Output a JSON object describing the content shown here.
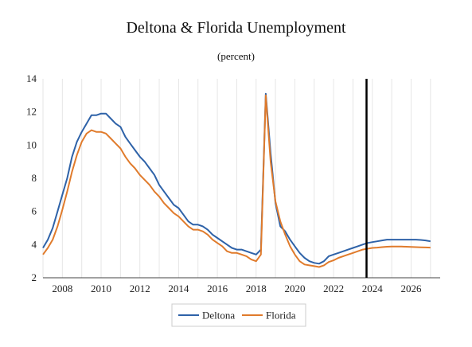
{
  "title": "Deltona & Florida Unemployment",
  "subtitle": "(percent)",
  "chart_data": {
    "type": "line",
    "title": "Deltona & Florida Unemployment",
    "subtitle": "(percent)",
    "xlabel": "",
    "ylabel": "",
    "xlim": [
      2007.0,
      2027.5
    ],
    "ylim": [
      2,
      14
    ],
    "x_ticks": [
      2008,
      2010,
      2012,
      2014,
      2016,
      2018,
      2020,
      2022,
      2024,
      2026
    ],
    "y_ticks": [
      2,
      4,
      6,
      8,
      10,
      12,
      14
    ],
    "grid": "vertical",
    "legend_position": "bottom-center",
    "forecast_line_x": 2023.7,
    "series": [
      {
        "name": "Deltona",
        "color": "#2e62a8",
        "points": [
          [
            2007.0,
            3.8
          ],
          [
            2007.25,
            4.3
          ],
          [
            2007.5,
            5.0
          ],
          [
            2007.75,
            6.0
          ],
          [
            2008.0,
            7.0
          ],
          [
            2008.25,
            8.0
          ],
          [
            2008.5,
            9.3
          ],
          [
            2008.75,
            10.2
          ],
          [
            2009.0,
            10.8
          ],
          [
            2009.25,
            11.3
          ],
          [
            2009.5,
            11.8
          ],
          [
            2009.75,
            11.8
          ],
          [
            2010.0,
            11.9
          ],
          [
            2010.25,
            11.9
          ],
          [
            2010.5,
            11.6
          ],
          [
            2010.75,
            11.3
          ],
          [
            2011.0,
            11.1
          ],
          [
            2011.25,
            10.5
          ],
          [
            2011.5,
            10.1
          ],
          [
            2011.75,
            9.7
          ],
          [
            2012.0,
            9.3
          ],
          [
            2012.25,
            9.0
          ],
          [
            2012.5,
            8.6
          ],
          [
            2012.75,
            8.2
          ],
          [
            2013.0,
            7.6
          ],
          [
            2013.25,
            7.2
          ],
          [
            2013.5,
            6.8
          ],
          [
            2013.75,
            6.4
          ],
          [
            2014.0,
            6.2
          ],
          [
            2014.25,
            5.8
          ],
          [
            2014.5,
            5.4
          ],
          [
            2014.75,
            5.2
          ],
          [
            2015.0,
            5.2
          ],
          [
            2015.25,
            5.1
          ],
          [
            2015.5,
            4.9
          ],
          [
            2015.75,
            4.6
          ],
          [
            2016.0,
            4.4
          ],
          [
            2016.25,
            4.2
          ],
          [
            2016.5,
            4.0
          ],
          [
            2016.75,
            3.8
          ],
          [
            2017.0,
            3.7
          ],
          [
            2017.25,
            3.7
          ],
          [
            2017.5,
            3.6
          ],
          [
            2017.75,
            3.5
          ],
          [
            2018.0,
            3.4
          ],
          [
            2018.25,
            3.7
          ],
          [
            2018.5,
            13.1
          ],
          [
            2018.75,
            9.5
          ],
          [
            2019.0,
            6.5
          ],
          [
            2019.25,
            5.1
          ],
          [
            2019.5,
            4.8
          ],
          [
            2019.75,
            4.3
          ],
          [
            2020.0,
            3.9
          ],
          [
            2020.25,
            3.5
          ],
          [
            2020.5,
            3.2
          ],
          [
            2020.75,
            3.0
          ],
          [
            2021.0,
            2.9
          ],
          [
            2021.25,
            2.85
          ],
          [
            2021.5,
            3.0
          ],
          [
            2021.75,
            3.3
          ],
          [
            2022.0,
            3.4
          ],
          [
            2022.25,
            3.5
          ],
          [
            2022.5,
            3.6
          ],
          [
            2022.75,
            3.7
          ],
          [
            2023.0,
            3.8
          ],
          [
            2023.25,
            3.9
          ],
          [
            2023.5,
            4.0
          ],
          [
            2023.75,
            4.1
          ],
          [
            2024.0,
            4.15
          ],
          [
            2024.25,
            4.2
          ],
          [
            2024.5,
            4.25
          ],
          [
            2024.75,
            4.3
          ],
          [
            2025.0,
            4.3
          ],
          [
            2025.25,
            4.3
          ],
          [
            2025.5,
            4.3
          ],
          [
            2025.75,
            4.3
          ],
          [
            2026.0,
            4.3
          ],
          [
            2026.25,
            4.3
          ],
          [
            2026.5,
            4.28
          ],
          [
            2026.75,
            4.25
          ],
          [
            2027.0,
            4.2
          ]
        ]
      },
      {
        "name": "Florida",
        "color": "#e07b2c",
        "points": [
          [
            2007.0,
            3.4
          ],
          [
            2007.25,
            3.8
          ],
          [
            2007.5,
            4.3
          ],
          [
            2007.75,
            5.1
          ],
          [
            2008.0,
            6.1
          ],
          [
            2008.25,
            7.2
          ],
          [
            2008.5,
            8.4
          ],
          [
            2008.75,
            9.4
          ],
          [
            2009.0,
            10.2
          ],
          [
            2009.25,
            10.7
          ],
          [
            2009.5,
            10.9
          ],
          [
            2009.75,
            10.8
          ],
          [
            2010.0,
            10.8
          ],
          [
            2010.25,
            10.7
          ],
          [
            2010.5,
            10.4
          ],
          [
            2010.75,
            10.1
          ],
          [
            2011.0,
            9.8
          ],
          [
            2011.25,
            9.3
          ],
          [
            2011.5,
            8.9
          ],
          [
            2011.75,
            8.6
          ],
          [
            2012.0,
            8.2
          ],
          [
            2012.25,
            7.9
          ],
          [
            2012.5,
            7.6
          ],
          [
            2012.75,
            7.2
          ],
          [
            2013.0,
            6.9
          ],
          [
            2013.25,
            6.5
          ],
          [
            2013.5,
            6.2
          ],
          [
            2013.75,
            5.9
          ],
          [
            2014.0,
            5.7
          ],
          [
            2014.25,
            5.4
          ],
          [
            2014.5,
            5.1
          ],
          [
            2014.75,
            4.9
          ],
          [
            2015.0,
            4.9
          ],
          [
            2015.25,
            4.8
          ],
          [
            2015.5,
            4.6
          ],
          [
            2015.75,
            4.3
          ],
          [
            2016.0,
            4.1
          ],
          [
            2016.25,
            3.9
          ],
          [
            2016.5,
            3.6
          ],
          [
            2016.75,
            3.5
          ],
          [
            2017.0,
            3.5
          ],
          [
            2017.25,
            3.4
          ],
          [
            2017.5,
            3.3
          ],
          [
            2017.75,
            3.1
          ],
          [
            2018.0,
            3.0
          ],
          [
            2018.25,
            3.4
          ],
          [
            2018.5,
            13.0
          ],
          [
            2018.75,
            9.0
          ],
          [
            2019.0,
            6.6
          ],
          [
            2019.25,
            5.4
          ],
          [
            2019.5,
            4.6
          ],
          [
            2019.75,
            3.9
          ],
          [
            2020.0,
            3.4
          ],
          [
            2020.25,
            3.0
          ],
          [
            2020.5,
            2.8
          ],
          [
            2020.75,
            2.75
          ],
          [
            2021.0,
            2.7
          ],
          [
            2021.25,
            2.65
          ],
          [
            2021.5,
            2.75
          ],
          [
            2021.75,
            2.95
          ],
          [
            2022.0,
            3.05
          ],
          [
            2022.25,
            3.2
          ],
          [
            2022.5,
            3.3
          ],
          [
            2022.75,
            3.4
          ],
          [
            2023.0,
            3.5
          ],
          [
            2023.25,
            3.6
          ],
          [
            2023.5,
            3.7
          ],
          [
            2023.75,
            3.75
          ],
          [
            2024.0,
            3.8
          ],
          [
            2024.25,
            3.82
          ],
          [
            2024.5,
            3.85
          ],
          [
            2024.75,
            3.87
          ],
          [
            2025.0,
            3.88
          ],
          [
            2025.25,
            3.88
          ],
          [
            2025.5,
            3.88
          ],
          [
            2025.75,
            3.87
          ],
          [
            2026.0,
            3.86
          ],
          [
            2026.25,
            3.85
          ],
          [
            2026.5,
            3.84
          ],
          [
            2026.75,
            3.83
          ],
          [
            2027.0,
            3.82
          ]
        ]
      }
    ]
  }
}
